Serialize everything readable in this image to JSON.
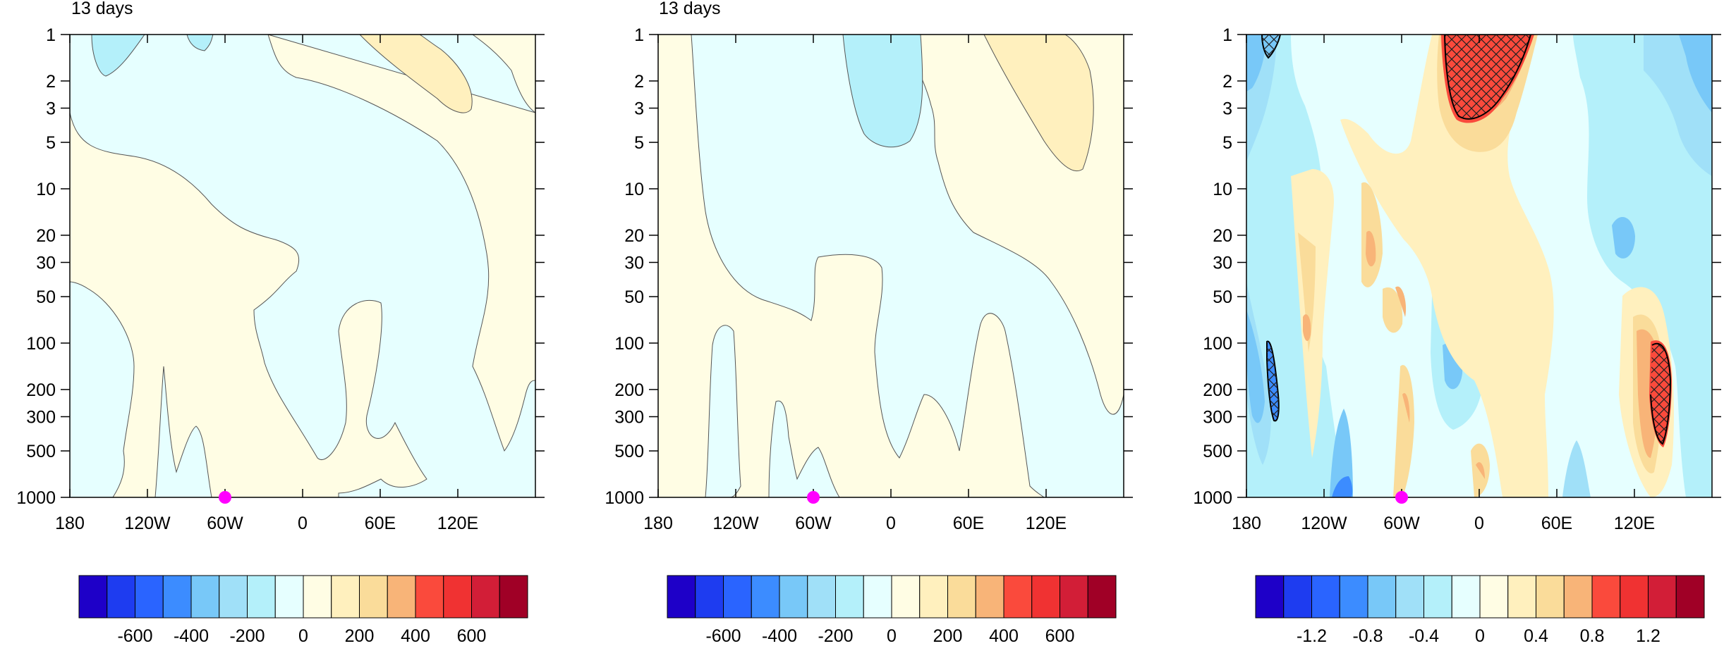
{
  "panels": [
    {
      "title": "13 days",
      "colorbar_labels": [
        "-600",
        "-400",
        "-200",
        "0",
        "200",
        "400",
        "600"
      ]
    },
    {
      "title": "13 days",
      "colorbar_labels": [
        "-600",
        "-400",
        "-200",
        "0",
        "200",
        "400",
        "600"
      ]
    },
    {
      "title": "",
      "colorbar_labels": [
        "-1.2",
        "-0.8",
        "-0.4",
        "0",
        "0.4",
        "0.8",
        "1.2"
      ]
    }
  ],
  "chart_data": [
    {
      "type": "heatmap",
      "title": "13 days",
      "x_ticks": [
        "180",
        "120W",
        "60W",
        "0",
        "60E",
        "120E"
      ],
      "y_ticks": [
        "1",
        "2",
        "3",
        "5",
        "10",
        "20",
        "30",
        "50",
        "100",
        "200",
        "300",
        "500",
        "1000"
      ],
      "y_scale": "log",
      "y_reversed": true,
      "xlim": [
        -180,
        180
      ],
      "ylim": [
        1000,
        1
      ],
      "levels": [
        -700,
        -600,
        -500,
        -400,
        -300,
        -200,
        -100,
        0,
        100,
        200,
        300,
        400,
        500,
        600,
        700
      ],
      "colorbar_labels": [
        "-600",
        "-400",
        "-200",
        "0",
        "200",
        "400",
        "600"
      ],
      "marker": {
        "lon": -60,
        "pressure": 1000,
        "color": "#ff00ff"
      }
    },
    {
      "type": "heatmap",
      "title": "13 days",
      "x_ticks": [
        "180",
        "120W",
        "60W",
        "0",
        "60E",
        "120E"
      ],
      "y_ticks": [
        "1",
        "2",
        "3",
        "5",
        "10",
        "20",
        "30",
        "50",
        "100",
        "200",
        "300",
        "500",
        "1000"
      ],
      "y_scale": "log",
      "y_reversed": true,
      "xlim": [
        -180,
        180
      ],
      "ylim": [
        1000,
        1
      ],
      "levels": [
        -700,
        -600,
        -500,
        -400,
        -300,
        -200,
        -100,
        0,
        100,
        200,
        300,
        400,
        500,
        600,
        700
      ],
      "colorbar_labels": [
        "-600",
        "-400",
        "-200",
        "0",
        "200",
        "400",
        "600"
      ],
      "marker": {
        "lon": -60,
        "pressure": 1000,
        "color": "#ff00ff"
      }
    },
    {
      "type": "heatmap",
      "title": "",
      "x_ticks": [
        "180",
        "120W",
        "60W",
        "0",
        "60E",
        "120E"
      ],
      "y_ticks": [
        "1",
        "2",
        "3",
        "5",
        "10",
        "20",
        "30",
        "50",
        "100",
        "200",
        "300",
        "500",
        "1000"
      ],
      "y_scale": "log",
      "y_reversed": true,
      "xlim": [
        -180,
        180
      ],
      "ylim": [
        1000,
        1
      ],
      "levels": [
        -1.4,
        -1.2,
        -1.0,
        -0.8,
        -0.6,
        -0.4,
        -0.2,
        0,
        0.2,
        0.4,
        0.6,
        0.8,
        1.0,
        1.2,
        1.4
      ],
      "colorbar_labels": [
        "-1.2",
        "-0.8",
        "-0.4",
        "0",
        "0.4",
        "0.8",
        "1.2"
      ],
      "hatched_regions": true,
      "marker": {
        "lon": -60,
        "pressure": 1000,
        "color": "#ff00ff"
      }
    }
  ],
  "colors": {
    "palette": [
      "#1e00c8",
      "#1e3cf0",
      "#2a64ff",
      "#3c8cff",
      "#78c8f8",
      "#a0e0f8",
      "#b4f0fa",
      "#e6ffff",
      "#fffde4",
      "#fff0be",
      "#fadc9a",
      "#f8b478",
      "#fa4a3c",
      "#f03232",
      "#d21e37",
      "#a00026"
    ],
    "marker": "#ff00ff"
  }
}
